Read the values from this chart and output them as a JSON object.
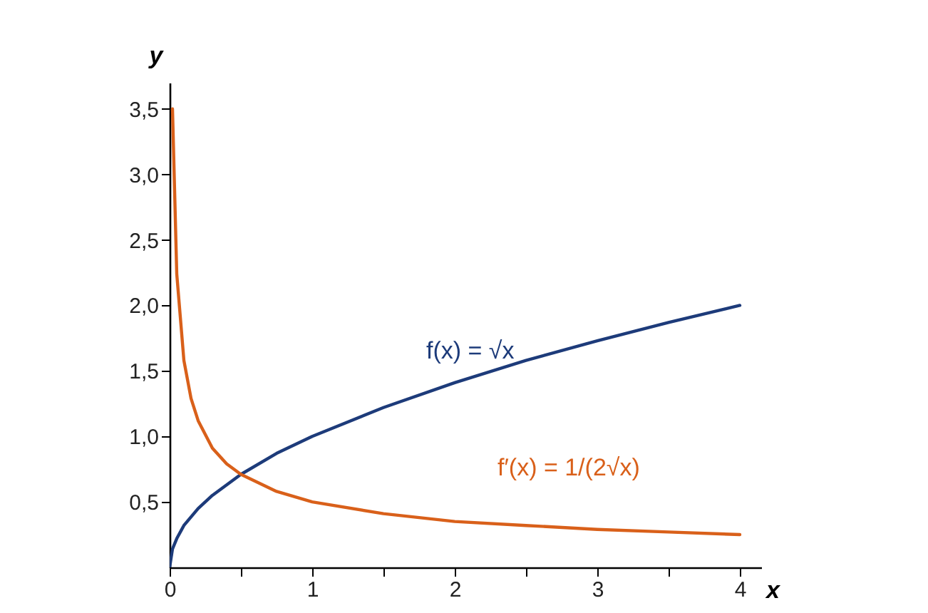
{
  "chart_data": {
    "type": "line",
    "xlabel": "x",
    "ylabel": "y",
    "series": [
      {
        "name": "f(x) = √x",
        "color": "#1d3b7a",
        "x": [
          0,
          0.02,
          0.05,
          0.1,
          0.2,
          0.3,
          0.5,
          0.75,
          1,
          1.5,
          2,
          2.5,
          3,
          3.5,
          4
        ],
        "values": [
          0,
          0.14,
          0.22,
          0.32,
          0.45,
          0.55,
          0.71,
          0.87,
          1,
          1.22,
          1.41,
          1.58,
          1.73,
          1.87,
          2
        ]
      },
      {
        "name": "f′(x) = 1/(2√x)",
        "color": "#d9601a",
        "x": [
          0.02,
          0.05,
          0.1,
          0.15,
          0.2,
          0.3,
          0.4,
          0.5,
          0.75,
          1,
          1.5,
          2,
          2.5,
          3,
          3.5,
          4
        ],
        "values": [
          3.5,
          2.24,
          1.58,
          1.29,
          1.12,
          0.91,
          0.79,
          0.71,
          0.58,
          0.5,
          0.41,
          0.35,
          0.32,
          0.29,
          0.27,
          0.25
        ]
      }
    ],
    "xlim": [
      0,
      4.15
    ],
    "ylim": [
      0,
      3.7
    ],
    "xticks": [
      0,
      {
        "value": 0.5,
        "label": null
      },
      1,
      {
        "value": 1.5,
        "label": null
      },
      2,
      {
        "value": 2.5,
        "label": null
      },
      3,
      {
        "value": 3.5,
        "label": null
      },
      4
    ],
    "yticks": [
      {
        "value": 0.5,
        "label": "0,5"
      },
      {
        "value": 1,
        "label": "1,0"
      },
      {
        "value": 1.5,
        "label": "1,5"
      },
      {
        "value": 2,
        "label": "2,0"
      },
      {
        "value": 2.5,
        "label": "2,5"
      },
      {
        "value": 3,
        "label": "3,0"
      },
      {
        "value": 3.5,
        "label": "3,5"
      }
    ],
    "grid": false,
    "legend": false,
    "marker": "none",
    "line_style": "solid"
  }
}
